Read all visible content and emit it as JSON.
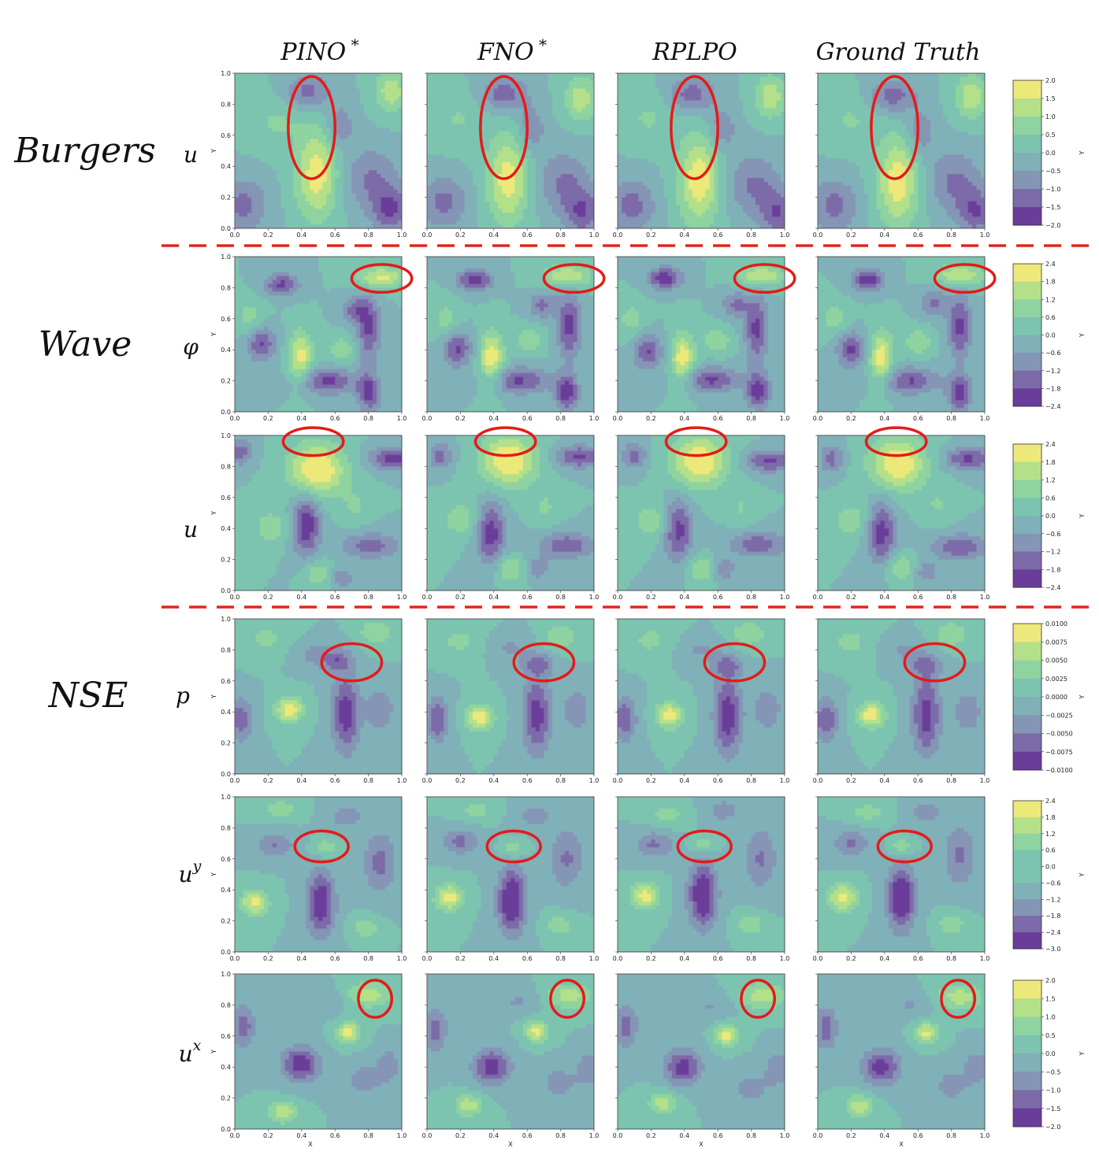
{
  "chart_data": {
    "type": "contour_grid",
    "columns": [
      "PINO",
      "FNO",
      "RPLPO",
      "Ground Truth"
    ],
    "column_superscripts": [
      "*",
      "*",
      "",
      ""
    ],
    "equations": [
      {
        "name": "Burgers",
        "rows": [
          0
        ]
      },
      {
        "name": "Wave",
        "rows": [
          1,
          2
        ]
      },
      {
        "name": "NSE",
        "rows": [
          3,
          4,
          5
        ]
      }
    ],
    "rows": [
      {
        "variable": "u",
        "superscript": "",
        "colorbar": {
          "ticks": [
            "2.0",
            "1.5",
            "1.0",
            "0.5",
            "0.0",
            "−0.5",
            "−1.0",
            "−1.5",
            "−2.0"
          ],
          "vmin": -2.0,
          "vmax": 2.0,
          "label": "Y"
        }
      },
      {
        "variable": "φ",
        "superscript": "",
        "colorbar": {
          "ticks": [
            "2.4",
            "1.8",
            "1.2",
            "0.6",
            "0.0",
            "−0.6",
            "−1.2",
            "−1.8",
            "−2.4"
          ],
          "vmin": -2.4,
          "vmax": 2.4,
          "label": "Y"
        }
      },
      {
        "variable": "u",
        "superscript": "",
        "colorbar": {
          "ticks": [
            "2.4",
            "1.8",
            "1.2",
            "0.6",
            "0.0",
            "−0.6",
            "−1.2",
            "−1.8",
            "−2.4"
          ],
          "vmin": -2.4,
          "vmax": 2.4,
          "label": "Y"
        }
      },
      {
        "variable": "p",
        "superscript": "",
        "colorbar": {
          "ticks": [
            "0.0100",
            "0.0075",
            "0.0050",
            "0.0025",
            "0.0000",
            "−0.0025",
            "−0.0050",
            "−0.0075",
            "−0.0100"
          ],
          "vmin": -0.01,
          "vmax": 0.01,
          "label": "Y"
        }
      },
      {
        "variable": "u",
        "superscript": "y",
        "colorbar": {
          "ticks": [
            "2.4",
            "1.8",
            "1.2",
            "0.6",
            "0.0",
            "−0.6",
            "−1.2",
            "−1.8",
            "−2.4",
            "−3.0"
          ],
          "vmin": -3.0,
          "vmax": 2.4,
          "label": "Y"
        }
      },
      {
        "variable": "u",
        "superscript": "x",
        "colorbar": {
          "ticks": [
            "2.0",
            "1.5",
            "1.0",
            "0.5",
            "0.0",
            "−0.5",
            "−1.0",
            "−1.5",
            "−2.0"
          ],
          "vmin": -2.0,
          "vmax": 2.0,
          "label": "Y"
        }
      }
    ],
    "axis_ticks": [
      "0.0",
      "0.2",
      "0.4",
      "0.6",
      "0.8",
      "1.0"
    ],
    "xlabel": "X",
    "ylabel": "Y",
    "xlim": [
      0,
      1
    ],
    "ylim": [
      0,
      1
    ],
    "colormap": [
      "#6a3d9a",
      "#7d6aa8",
      "#8595b5",
      "#80b0b8",
      "#7cc4b0",
      "#8fd3a0",
      "#b5e08a",
      "#ede87a"
    ]
  }
}
